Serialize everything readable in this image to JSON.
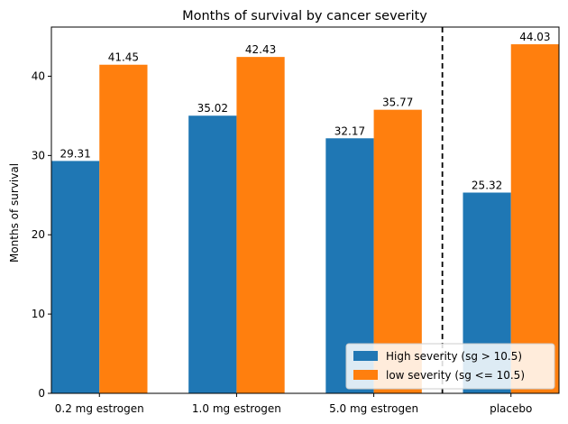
{
  "chart_data": {
    "type": "bar",
    "title": "Months of survival by cancer severity",
    "xlabel": "",
    "ylabel": "Months of survival",
    "categories": [
      "0.2 mg estrogen",
      "1.0 mg estrogen",
      "5.0 mg estrogen",
      "placebo"
    ],
    "series": [
      {
        "name": "High severity (sg > 10.5)",
        "values": [
          29.31,
          35.02,
          32.17,
          25.32
        ],
        "color": "#1f77b4"
      },
      {
        "name": "low severity (sg <= 10.5)",
        "values": [
          41.45,
          42.43,
          35.77,
          44.03
        ],
        "color": "#ff7f0e"
      }
    ],
    "value_labels": [
      [
        "29.31",
        "35.02",
        "32.17",
        "25.32"
      ],
      [
        "41.45",
        "42.43",
        "35.77",
        "44.03"
      ]
    ],
    "ylim": [
      0,
      46.2
    ],
    "yticks": [
      0,
      10,
      20,
      30,
      40
    ],
    "ytick_labels": [
      "0",
      "10",
      "20",
      "30",
      "40"
    ],
    "separator": "dashed vertical line between 5.0 mg estrogen and placebo",
    "grid": false,
    "legend_position": "lower-right"
  }
}
